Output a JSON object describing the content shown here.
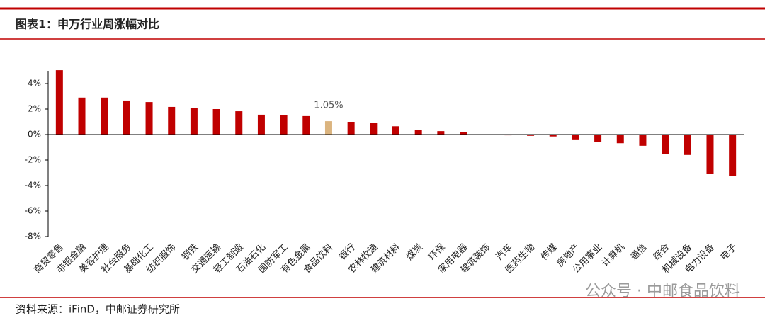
{
  "header": {
    "title": "图表1：申万行业周涨幅对比"
  },
  "chart_data": {
    "type": "bar",
    "categories": [
      "商贸零售",
      "非银金融",
      "美容护理",
      "社会服务",
      "基础化工",
      "纺织服饰",
      "钢铁",
      "交通运输",
      "轻工制造",
      "石油石化",
      "国防军工",
      "有色金属",
      "食品饮料",
      "银行",
      "农林牧渔",
      "建筑材料",
      "煤炭",
      "环保",
      "家用电器",
      "建筑装饰",
      "汽车",
      "医药生物",
      "传媒",
      "房地产",
      "公用事业",
      "计算机",
      "通信",
      "综合",
      "机械设备",
      "电力设备",
      "电子"
    ],
    "values": [
      5.05,
      2.9,
      2.9,
      2.67,
      2.55,
      2.17,
      2.06,
      2.0,
      1.83,
      1.56,
      1.55,
      1.45,
      1.05,
      1.0,
      0.9,
      0.65,
      0.35,
      0.27,
      0.17,
      -0.05,
      -0.06,
      -0.1,
      -0.15,
      -0.38,
      -0.6,
      -0.68,
      -0.88,
      -1.55,
      -1.6,
      -3.1,
      -3.25
    ],
    "value_labels": [
      null,
      null,
      null,
      null,
      null,
      null,
      null,
      null,
      null,
      null,
      null,
      null,
      "1.05%",
      null,
      null,
      null,
      null,
      null,
      null,
      null,
      null,
      null,
      null,
      null,
      null,
      null,
      null,
      null,
      null,
      null,
      null
    ],
    "colors": [
      "#c00000",
      "#c00000",
      "#c00000",
      "#c00000",
      "#c00000",
      "#c00000",
      "#c00000",
      "#c00000",
      "#c00000",
      "#c00000",
      "#c00000",
      "#c00000",
      "#dbb47f",
      "#c00000",
      "#c00000",
      "#c00000",
      "#c00000",
      "#c00000",
      "#c00000",
      "#c00000",
      "#c00000",
      "#c00000",
      "#c00000",
      "#c00000",
      "#c00000",
      "#c00000",
      "#c00000",
      "#c00000",
      "#c00000",
      "#c00000",
      "#c00000"
    ],
    "ylim": [
      -8,
      5
    ],
    "yticks": [
      {
        "value": -8,
        "label": "-8%"
      },
      {
        "value": -6,
        "label": "-6%"
      },
      {
        "value": -4,
        "label": "-4%"
      },
      {
        "value": -2,
        "label": "-2%"
      },
      {
        "value": 0,
        "label": "0%"
      },
      {
        "value": 2,
        "label": "2%"
      },
      {
        "value": 4,
        "label": "4%"
      }
    ]
  },
  "footer": {
    "source": "资料来源：iFinD，中邮证券研究所",
    "watermark": "公众号 · 中邮食品饮料"
  }
}
